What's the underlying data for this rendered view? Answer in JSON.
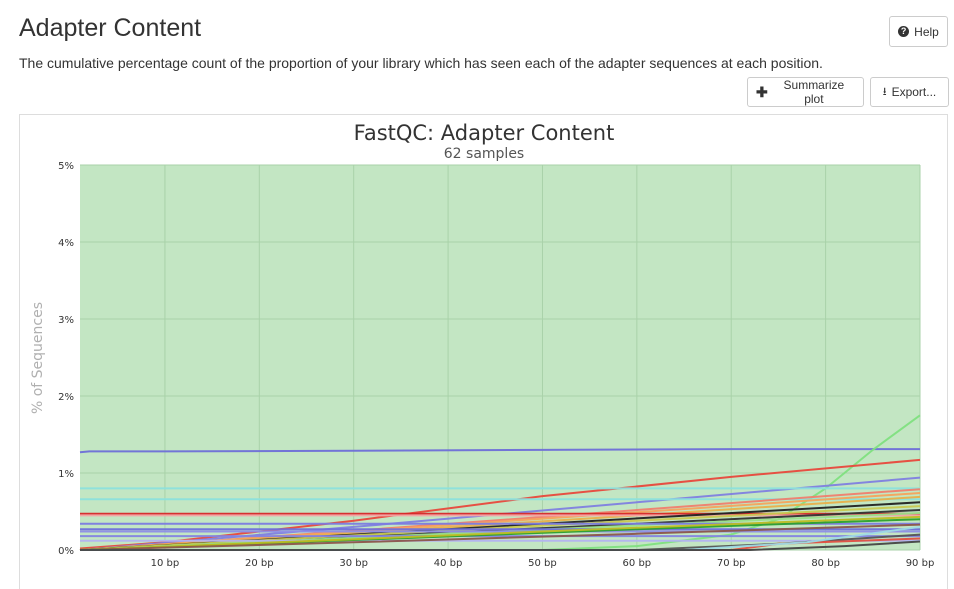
{
  "page": {
    "title": "Adapter Content",
    "description": "The cumulative percentage count of the proportion of your library which has seen each of the adapter sequences at each position."
  },
  "toolbar": {
    "help_label": "Help",
    "summarize_label": "Summarize plot",
    "export_label": "Export..."
  },
  "icons": {
    "help": "question-circle-icon",
    "summarize": "plus-icon",
    "export": "download-icon"
  },
  "colors": {
    "plot_background": "#c3e6c3",
    "axis_label": "#b0b0b0"
  },
  "chart_data": {
    "type": "line",
    "title": "FastQC: Adapter Content",
    "subtitle": "62 samples",
    "xlabel": "",
    "ylabel": "% of Sequences",
    "xlim": [
      1,
      90
    ],
    "ylim": [
      0,
      5
    ],
    "x_ticks": [
      10,
      20,
      30,
      40,
      50,
      60,
      70,
      80,
      90
    ],
    "x_tick_labels": [
      "10 bp",
      "20 bp",
      "30 bp",
      "40 bp",
      "50 bp",
      "60 bp",
      "70 bp",
      "80 bp",
      "90 bp"
    ],
    "y_ticks": [
      0,
      1,
      2,
      3,
      4,
      5
    ],
    "y_tick_labels": [
      "0%",
      "1%",
      "2%",
      "3%",
      "4%",
      "5%"
    ],
    "grid": true,
    "legend": "none",
    "series": [
      {
        "color": "#6e6ed8",
        "x": [
          1,
          2,
          10,
          30,
          50,
          70,
          90
        ],
        "y": [
          1.27,
          1.28,
          1.28,
          1.29,
          1.3,
          1.31,
          1.31
        ]
      },
      {
        "color": "#7fe07f",
        "x": [
          1,
          50,
          60,
          70,
          75,
          80,
          85,
          90
        ],
        "y": [
          0,
          0,
          0.05,
          0.2,
          0.4,
          0.8,
          1.3,
          1.75
        ]
      },
      {
        "color": "#e8483c",
        "x": [
          1,
          10,
          30,
          50,
          70,
          90
        ],
        "y": [
          0.02,
          0.1,
          0.38,
          0.7,
          0.95,
          1.17
        ]
      },
      {
        "color": "#8080e0",
        "x": [
          1,
          30,
          60,
          90
        ],
        "y": [
          0.0,
          0.3,
          0.62,
          0.94
        ]
      },
      {
        "color": "#8ce0dc",
        "x": [
          1,
          90
        ],
        "y": [
          0.8,
          0.8
        ]
      },
      {
        "color": "#8ce0dc",
        "x": [
          1,
          90
        ],
        "y": [
          0.66,
          0.66
        ]
      },
      {
        "color": "#f07e6e",
        "x": [
          1,
          30,
          60,
          90
        ],
        "y": [
          0.0,
          0.25,
          0.52,
          0.79
        ]
      },
      {
        "color": "#f5a35c",
        "x": [
          1,
          30,
          60,
          90
        ],
        "y": [
          0.0,
          0.24,
          0.49,
          0.74
        ]
      },
      {
        "color": "#e8b04b",
        "x": [
          1,
          30,
          60,
          90
        ],
        "y": [
          0.0,
          0.22,
          0.45,
          0.69
        ]
      },
      {
        "color": "#d62728",
        "x": [
          1,
          90
        ],
        "y": [
          0.47,
          0.47
        ]
      },
      {
        "color": "#f4a3a3",
        "x": [
          1,
          90
        ],
        "y": [
          0.45,
          0.45
        ]
      },
      {
        "color": "#222222",
        "x": [
          1,
          30,
          60,
          90
        ],
        "y": [
          0.0,
          0.2,
          0.41,
          0.62
        ]
      },
      {
        "color": "#333333",
        "x": [
          1,
          30,
          60,
          90
        ],
        "y": [
          0.0,
          0.17,
          0.34,
          0.52
        ]
      },
      {
        "color": "#c8c850",
        "x": [
          1,
          30,
          60,
          90
        ],
        "y": [
          0.0,
          0.19,
          0.38,
          0.57
        ]
      },
      {
        "color": "#98df8a",
        "x": [
          1,
          30,
          60,
          90
        ],
        "y": [
          0.0,
          0.16,
          0.32,
          0.48
        ]
      },
      {
        "color": "#7b7be0",
        "x": [
          1,
          90
        ],
        "y": [
          0.34,
          0.34
        ]
      },
      {
        "color": "#6f6fda",
        "x": [
          1,
          90
        ],
        "y": [
          0.27,
          0.27
        ]
      },
      {
        "color": "#8e8ee6",
        "x": [
          1,
          90
        ],
        "y": [
          0.24,
          0.24
        ]
      },
      {
        "color": "#8484e2",
        "x": [
          1,
          90
        ],
        "y": [
          0.18,
          0.18
        ]
      },
      {
        "color": "#b3b3f0",
        "x": [
          1,
          90
        ],
        "y": [
          0.12,
          0.12
        ]
      },
      {
        "color": "#2ca02c",
        "x": [
          1,
          30,
          60,
          90
        ],
        "y": [
          0.0,
          0.13,
          0.27,
          0.4
        ]
      },
      {
        "color": "#bcbd22",
        "x": [
          1,
          30,
          60,
          90
        ],
        "y": [
          0.0,
          0.14,
          0.29,
          0.43
        ]
      },
      {
        "color": "#8c564b",
        "x": [
          1,
          30,
          60,
          90
        ],
        "y": [
          0.0,
          0.1,
          0.21,
          0.33
        ]
      },
      {
        "color": "#555555",
        "x": [
          1,
          60,
          75,
          90
        ],
        "y": [
          0.0,
          0.0,
          0.08,
          0.2
        ]
      },
      {
        "color": "#e05040",
        "x": [
          1,
          70,
          75,
          90
        ],
        "y": [
          0.0,
          0.0,
          0.08,
          0.15
        ]
      },
      {
        "color": "#9edae5",
        "x": [
          1,
          65,
          78,
          90
        ],
        "y": [
          0.0,
          0.0,
          0.1,
          0.3
        ]
      },
      {
        "color": "#444444",
        "x": [
          1,
          72,
          82,
          90
        ],
        "y": [
          0.0,
          0.0,
          0.05,
          0.11
        ]
      }
    ]
  }
}
